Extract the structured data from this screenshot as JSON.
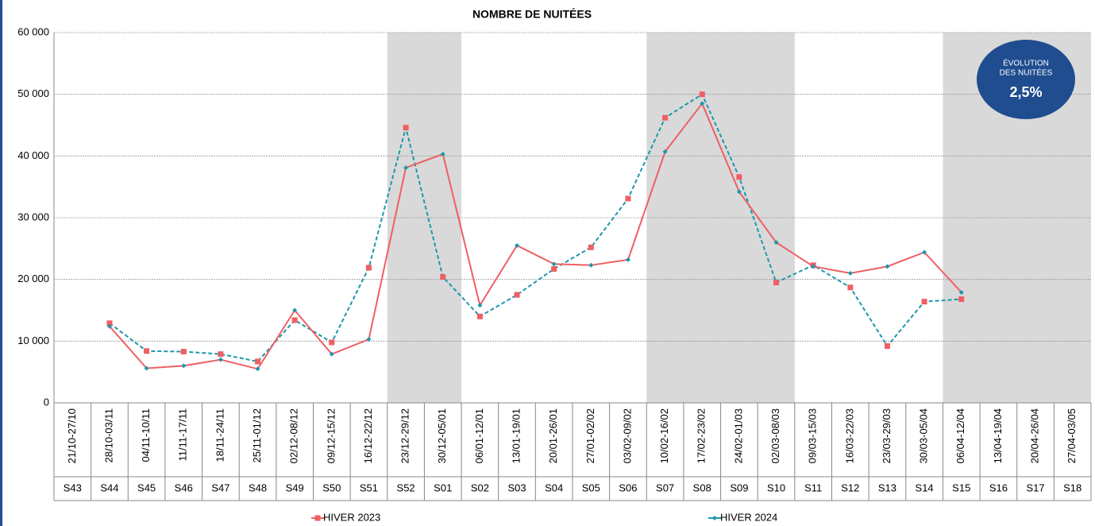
{
  "chart_data": {
    "type": "line",
    "title": "NOMBRE DE NUITÉES",
    "categories": [
      "21/10-27/10",
      "28/10-03/11",
      "04/11-10/11",
      "11/11-17/11",
      "18/11-24/11",
      "25/11-01/12",
      "02/12-08/12",
      "09/12-15/12",
      "16/12-22/12",
      "23/12-29/12",
      "30/12-05/01",
      "06/01-12/01",
      "13/01-19/01",
      "20/01-26/01",
      "27/01-02/02",
      "03/02-09/02",
      "10/02-16/02",
      "17/02-23/02",
      "24/02-01/03",
      "02/03-08/03",
      "09/03-15/03",
      "16/03-22/03",
      "23/03-29/03",
      "30/03-05/04",
      "06/04-12/04",
      "13/04-19/04",
      "20/04-26/04",
      "27/04-03/05"
    ],
    "weeks": [
      "S43",
      "S44",
      "S45",
      "S46",
      "S47",
      "S48",
      "S49",
      "S50",
      "S51",
      "S52",
      "S01",
      "S02",
      "S03",
      "S04",
      "S05",
      "S06",
      "S07",
      "S08",
      "S09",
      "S10",
      "S11",
      "S12",
      "S13",
      "S14",
      "S15",
      "S16",
      "S17",
      "S18"
    ],
    "shaded": [
      [
        "S52",
        "S01"
      ],
      [
        "S07",
        "S10"
      ],
      [
        "S15",
        "S18"
      ]
    ],
    "series": [
      {
        "name": "HIVER 2023",
        "color": "#ef5f63",
        "line_color": "#1b98ad",
        "dashed": true,
        "marker": "square",
        "values": [
          null,
          12900,
          8400,
          8300,
          7900,
          6700,
          13400,
          9800,
          21900,
          44600,
          20400,
          14000,
          17500,
          21700,
          25200,
          33100,
          46200,
          50000,
          36600,
          19500,
          22300,
          18700,
          9200,
          16400,
          16800,
          null,
          null,
          null
        ]
      },
      {
        "name": "HIVER 2024",
        "color": "#1b98ad",
        "line_color": "#ef5f63",
        "dashed": false,
        "marker": "diamond",
        "values": [
          null,
          12400,
          5600,
          6000,
          7000,
          5500,
          15000,
          7900,
          10300,
          38100,
          40300,
          15800,
          25500,
          22500,
          22300,
          23200,
          40700,
          48500,
          34200,
          26000,
          22100,
          21000,
          22100,
          24400,
          17900,
          null,
          null,
          null
        ]
      }
    ],
    "ylim": [
      0,
      60000
    ],
    "yticks": [
      {
        "value": 0,
        "label": "0"
      },
      {
        "value": 10000,
        "label": "10 000"
      },
      {
        "value": 20000,
        "label": "20 000"
      },
      {
        "value": 30000,
        "label": "30 000"
      },
      {
        "value": 40000,
        "label": "40 000"
      },
      {
        "value": 50000,
        "label": "50 000"
      },
      {
        "value": 60000,
        "label": "60 000"
      }
    ],
    "grid": true,
    "annotation": {
      "title": [
        "ÉVOLUTION",
        "DES NUITÉES"
      ],
      "text": "2,5%"
    }
  }
}
